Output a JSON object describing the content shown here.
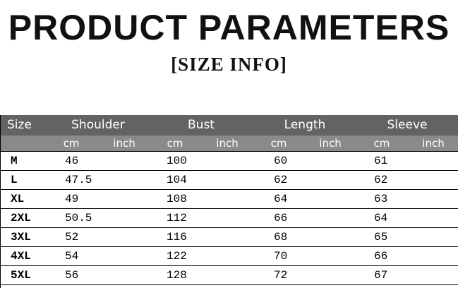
{
  "header": {
    "title": "PRODUCT PARAMETERS",
    "subtitle": "[SIZE INFO]"
  },
  "table": {
    "columns": [
      "Size",
      "Shoulder",
      "Bust",
      "Length",
      "Sleeve"
    ],
    "units": [
      "cm",
      "inch",
      "cm",
      "inch",
      "cm",
      "inch",
      "cm",
      "inch"
    ],
    "rows": [
      [
        "M",
        "46",
        "100",
        "60",
        "61"
      ],
      [
        "L",
        "47.5",
        "104",
        "62",
        "62"
      ],
      [
        "XL",
        "49",
        "108",
        "64",
        "63"
      ],
      [
        "2XL",
        "50.5",
        "112",
        "66",
        "64"
      ],
      [
        "3XL",
        "52",
        "116",
        "68",
        "65"
      ],
      [
        "4XL",
        "54",
        "122",
        "70",
        "66"
      ],
      [
        "5XL",
        "56",
        "128",
        "72",
        "67"
      ]
    ]
  }
}
